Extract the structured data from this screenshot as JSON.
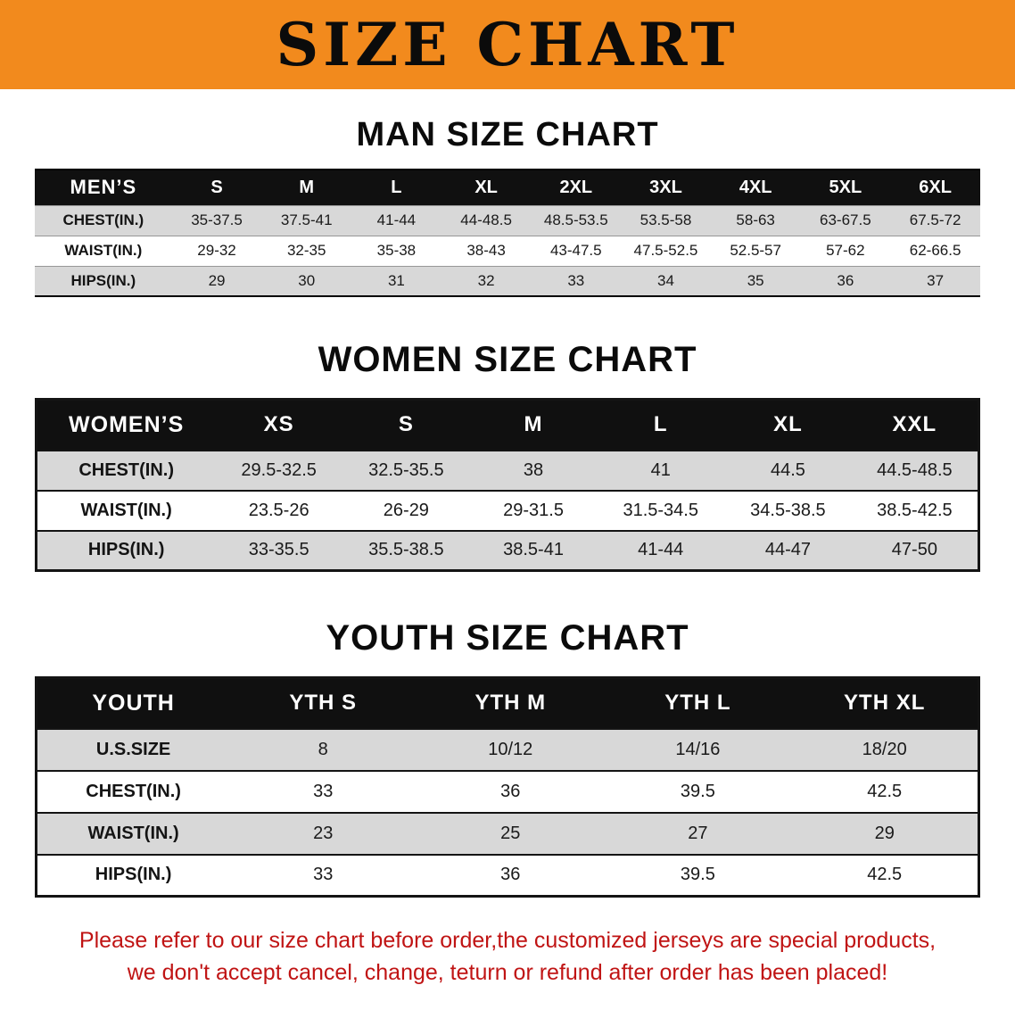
{
  "banner": {
    "title": "SIZE CHART"
  },
  "colors": {
    "banner_bg": "#F28A1D",
    "header_bg": "#101010",
    "row_shade": "#D8D8D8",
    "footer_red": "#C01414"
  },
  "men": {
    "heading": "MAN SIZE CHART",
    "table": {
      "header": [
        "MEN’S",
        "S",
        "M",
        "L",
        "XL",
        "2XL",
        "3XL",
        "4XL",
        "5XL",
        "6XL"
      ],
      "rows": [
        {
          "label": "CHEST(IN.)",
          "values": [
            "35-37.5",
            "37.5-41",
            "41-44",
            "44-48.5",
            "48.5-53.5",
            "53.5-58",
            "58-63",
            "63-67.5",
            "67.5-72"
          ]
        },
        {
          "label": "WAIST(IN.)",
          "values": [
            "29-32",
            "32-35",
            "35-38",
            "38-43",
            "43-47.5",
            "47.5-52.5",
            "52.5-57",
            "57-62",
            "62-66.5"
          ]
        },
        {
          "label": "HIPS(IN.)",
          "values": [
            "29",
            "30",
            "31",
            "32",
            "33",
            "34",
            "35",
            "36",
            "37"
          ]
        }
      ]
    }
  },
  "women": {
    "heading": "WOMEN SIZE CHART",
    "table": {
      "header": [
        "WOMEN’S",
        "XS",
        "S",
        "M",
        "L",
        "XL",
        "XXL"
      ],
      "rows": [
        {
          "label": "CHEST(IN.)",
          "values": [
            "29.5-32.5",
            "32.5-35.5",
            "38",
            "41",
            "44.5",
            "44.5-48.5"
          ]
        },
        {
          "label": "WAIST(IN.)",
          "values": [
            "23.5-26",
            "26-29",
            "29-31.5",
            "31.5-34.5",
            "34.5-38.5",
            "38.5-42.5"
          ]
        },
        {
          "label": "HIPS(IN.)",
          "values": [
            "33-35.5",
            "35.5-38.5",
            "38.5-41",
            "41-44",
            "44-47",
            "47-50"
          ]
        }
      ]
    }
  },
  "youth": {
    "heading": "YOUTH SIZE CHART",
    "table": {
      "header": [
        "YOUTH",
        "YTH S",
        "YTH M",
        "YTH L",
        "YTH XL"
      ],
      "rows": [
        {
          "label": "U.S.SIZE",
          "values": [
            "8",
            "10/12",
            "14/16",
            "18/20"
          ]
        },
        {
          "label": "CHEST(IN.)",
          "values": [
            "33",
            "36",
            "39.5",
            "42.5"
          ]
        },
        {
          "label": "WAIST(IN.)",
          "values": [
            "23",
            "25",
            "27",
            "29"
          ]
        },
        {
          "label": "HIPS(IN.)",
          "values": [
            "33",
            "36",
            "39.5",
            "42.5"
          ]
        }
      ]
    }
  },
  "footer": {
    "line1": "Please refer to our size chart before order,the customized jerseys are special products,",
    "line2": "we don't accept cancel, change, teturn or refund after order has been placed!"
  }
}
